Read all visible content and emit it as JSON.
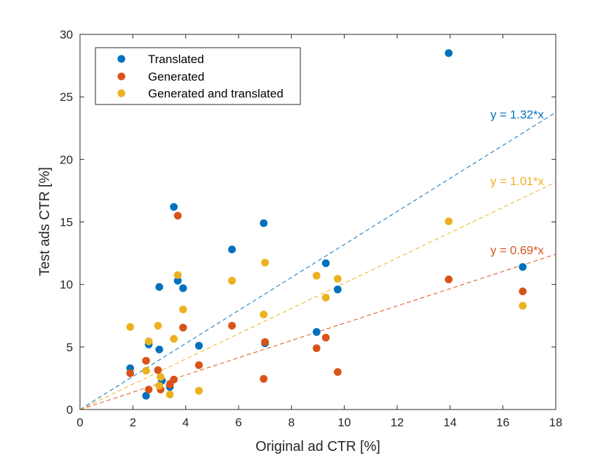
{
  "chart_data": {
    "type": "scatter",
    "xlabel": "Original ad CTR [%]",
    "ylabel": "Test ads CTR [%]",
    "xlim": [
      0,
      18
    ],
    "ylim": [
      0,
      30
    ],
    "xticks": [
      0,
      2,
      4,
      6,
      8,
      10,
      12,
      14,
      16,
      18
    ],
    "yticks": [
      0,
      5,
      10,
      15,
      20,
      25,
      30
    ],
    "grid": false,
    "legend_position": "top-left",
    "series": [
      {
        "name": "Translated",
        "color": "#0072BD",
        "points": [
          [
            1.9,
            3.3
          ],
          [
            2.5,
            1.1
          ],
          [
            2.6,
            5.2
          ],
          [
            3.0,
            9.8
          ],
          [
            3.0,
            4.8
          ],
          [
            3.1,
            2.3
          ],
          [
            3.4,
            1.8
          ],
          [
            3.55,
            16.2
          ],
          [
            3.7,
            10.3
          ],
          [
            3.9,
            9.7
          ],
          [
            4.5,
            5.1
          ],
          [
            5.75,
            12.8
          ],
          [
            6.95,
            14.9
          ],
          [
            7.0,
            5.3
          ],
          [
            8.95,
            6.2
          ],
          [
            9.3,
            11.7
          ],
          [
            9.75,
            9.6
          ],
          [
            13.95,
            28.5
          ],
          [
            16.75,
            11.4
          ]
        ],
        "fit_slope": 1.32,
        "fit_label": "y = 1.32*x"
      },
      {
        "name": "Generated",
        "color": "#D95319",
        "points": [
          [
            1.9,
            2.9
          ],
          [
            2.5,
            3.9
          ],
          [
            2.6,
            1.6
          ],
          [
            2.95,
            3.15
          ],
          [
            3.05,
            1.6
          ],
          [
            3.4,
            2.0
          ],
          [
            3.55,
            2.4
          ],
          [
            3.7,
            15.5
          ],
          [
            3.9,
            6.55
          ],
          [
            4.5,
            3.55
          ],
          [
            5.75,
            6.7
          ],
          [
            6.95,
            2.45
          ],
          [
            7.0,
            5.4
          ],
          [
            8.95,
            4.9
          ],
          [
            9.3,
            5.75
          ],
          [
            9.75,
            3.0
          ],
          [
            13.95,
            10.4
          ],
          [
            16.75,
            9.45
          ]
        ],
        "fit_slope": 0.69,
        "fit_label": "y = 0.69*x"
      },
      {
        "name": "Generated and translated",
        "color": "#EDB120",
        "points": [
          [
            1.9,
            6.6
          ],
          [
            2.5,
            3.1
          ],
          [
            2.6,
            5.45
          ],
          [
            2.95,
            6.7
          ],
          [
            3.0,
            1.9
          ],
          [
            3.05,
            2.6
          ],
          [
            3.4,
            1.2
          ],
          [
            3.55,
            5.65
          ],
          [
            3.7,
            10.75
          ],
          [
            3.9,
            8.0
          ],
          [
            4.5,
            1.5
          ],
          [
            5.75,
            10.3
          ],
          [
            6.95,
            7.6
          ],
          [
            7.0,
            11.75
          ],
          [
            8.95,
            10.7
          ],
          [
            9.3,
            8.95
          ],
          [
            9.75,
            10.45
          ],
          [
            13.95,
            15.05
          ],
          [
            16.75,
            8.3
          ]
        ],
        "fit_slope": 1.01,
        "fit_label": "y = 1.01*x"
      }
    ]
  }
}
